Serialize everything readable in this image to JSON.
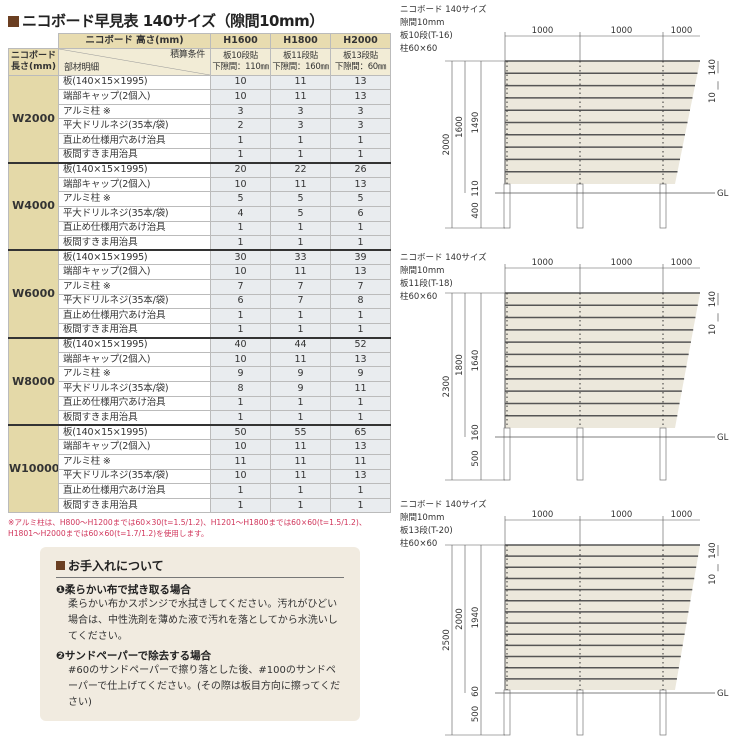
{
  "title": "ニコボード早見表 140サイズ（隙間10mm）",
  "table": {
    "height_header": "ニコボード 高さ(mm)",
    "length_header": "ニコボード\n長さ(mm)",
    "condition_label": "積算条件",
    "parts_label": "部材明細",
    "columns": [
      {
        "height": "H1600",
        "boards": "板10段貼",
        "gap": "下隙間：110㎜"
      },
      {
        "height": "H1800",
        "boards": "板11段貼",
        "gap": "下隙間：160㎜"
      },
      {
        "height": "H2000",
        "boards": "板13段貼",
        "gap": "下隙間：60㎜"
      }
    ],
    "items": [
      "板(140×15×1995)",
      "端部キャップ(2個入)",
      "アルミ柱 ※",
      "平大ドリルネジ(35本/袋)",
      "直止め仕様用穴あけ治具",
      "板間すきま用治具"
    ],
    "groups": [
      {
        "length": "W2000",
        "values": [
          [
            10,
            11,
            13
          ],
          [
            10,
            11,
            13
          ],
          [
            3,
            3,
            3
          ],
          [
            2,
            3,
            3
          ],
          [
            1,
            1,
            1
          ],
          [
            1,
            1,
            1
          ]
        ]
      },
      {
        "length": "W4000",
        "values": [
          [
            20,
            22,
            26
          ],
          [
            10,
            11,
            13
          ],
          [
            5,
            5,
            5
          ],
          [
            4,
            5,
            6
          ],
          [
            1,
            1,
            1
          ],
          [
            1,
            1,
            1
          ]
        ]
      },
      {
        "length": "W6000",
        "values": [
          [
            30,
            33,
            39
          ],
          [
            10,
            11,
            13
          ],
          [
            7,
            7,
            7
          ],
          [
            6,
            7,
            8
          ],
          [
            1,
            1,
            1
          ],
          [
            1,
            1,
            1
          ]
        ]
      },
      {
        "length": "W8000",
        "values": [
          [
            40,
            44,
            52
          ],
          [
            10,
            11,
            13
          ],
          [
            9,
            9,
            9
          ],
          [
            8,
            9,
            11
          ],
          [
            1,
            1,
            1
          ],
          [
            1,
            1,
            1
          ]
        ]
      },
      {
        "length": "W10000",
        "values": [
          [
            50,
            55,
            65
          ],
          [
            10,
            11,
            13
          ],
          [
            11,
            11,
            11
          ],
          [
            10,
            11,
            13
          ],
          [
            1,
            1,
            1
          ],
          [
            1,
            1,
            1
          ]
        ]
      }
    ]
  },
  "note": "※アルミ柱は、H800〜H1200までは60×30(t=1.5/1.2)、H1201〜H1800までは60×60(t=1.5/1.2)、H1801〜H2000までは60×60(t=1.7/1.2)を使用します。",
  "care": {
    "title": "お手入れについて",
    "sections": [
      {
        "heading": "❶柔らかい布で拭き取る場合",
        "body": "柔らかい布かスポンジで水拭きしてください。汚れがひどい場合は、中性洗剤を薄めた液で汚れを落としてから水洗いしてください。"
      },
      {
        "heading": "❷サンドペーパーで除去する場合",
        "body": "#60のサンドペーパーで擦り落とした後、#100のサンドペーパーで仕上げてください。(その際は板目方向に擦ってください)"
      }
    ]
  },
  "diagrams": [
    {
      "lines": [
        "ニコボード 140サイズ",
        "隙間10mm",
        "板10段(T-16)",
        "柱60×60"
      ],
      "boards": 10,
      "top_dims": [
        "1000",
        "1000",
        "1000"
      ],
      "total": "2000",
      "height": "1600",
      "board_span": "1490",
      "bottom_gap": "110",
      "embed": "400",
      "board_w": "140",
      "gap": "10",
      "ground": "GL"
    },
    {
      "lines": [
        "ニコボード 140サイズ",
        "隙間10mm",
        "板11段(T-18)",
        "柱60×60"
      ],
      "boards": 11,
      "top_dims": [
        "1000",
        "1000",
        "1000"
      ],
      "total": "2300",
      "height": "1800",
      "board_span": "1640",
      "bottom_gap": "160",
      "embed": "500",
      "board_w": "140",
      "gap": "10",
      "ground": "GL"
    },
    {
      "lines": [
        "ニコボード 140サイズ",
        "隙間10mm",
        "板13段(T-20)",
        "柱60×60"
      ],
      "boards": 13,
      "top_dims": [
        "1000",
        "1000",
        "1000"
      ],
      "total": "2500",
      "height": "2000",
      "board_span": "1940",
      "bottom_gap": "60",
      "embed": "500",
      "board_w": "140",
      "gap": "10",
      "ground": "GL"
    }
  ],
  "colors": {
    "brand": "#6b3f22",
    "header": "#e8dcb0",
    "note": "#d0345a",
    "board": "#ece8dc",
    "care_bg": "#f1ebe0"
  }
}
